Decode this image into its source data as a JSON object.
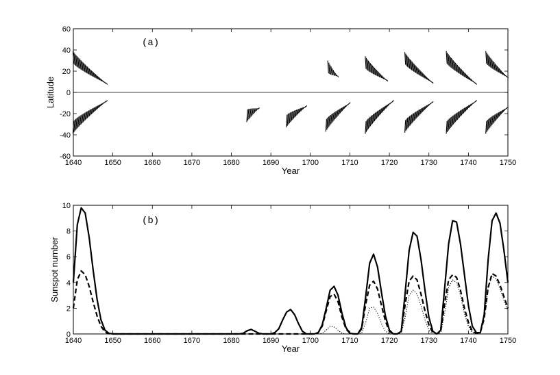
{
  "chart_data": [
    {
      "type": "scatter",
      "panel_label": "(a)",
      "xlabel": "Year",
      "ylabel": "Latitude",
      "xlim": [
        1640,
        1750
      ],
      "ylim": [
        -60,
        60
      ],
      "xticks": [
        1640,
        1650,
        1660,
        1670,
        1680,
        1690,
        1700,
        1710,
        1720,
        1730,
        1740,
        1750
      ],
      "yticks": [
        -60,
        -40,
        -20,
        0,
        20,
        40,
        60
      ],
      "zero_line": true,
      "grid": false,
      "wings": [
        {
          "start": 1640.0,
          "end": 1648.5,
          "lat_start": 33,
          "lat_end": 8,
          "hemispheres": [
            "N",
            "S"
          ]
        },
        {
          "start": 1684.0,
          "end": 1687.0,
          "lat_start": 22,
          "lat_end": 15,
          "hemispheres": [
            "S"
          ]
        },
        {
          "start": 1694.0,
          "end": 1699.0,
          "lat_start": 27,
          "lat_end": 13,
          "hemispheres": [
            "S"
          ]
        },
        {
          "start": 1704.5,
          "end": 1707.0,
          "lat_start": 24,
          "lat_end": 15,
          "hemispheres": [
            "N"
          ]
        },
        {
          "start": 1704.0,
          "end": 1710.0,
          "lat_start": 31,
          "lat_end": 10,
          "hemispheres": [
            "S"
          ]
        },
        {
          "start": 1714.0,
          "end": 1719.5,
          "lat_start": 28,
          "lat_end": 11,
          "hemispheres": [
            "N"
          ]
        },
        {
          "start": 1714.0,
          "end": 1721.0,
          "lat_start": 33,
          "lat_end": 8,
          "hemispheres": [
            "S"
          ]
        },
        {
          "start": 1724.0,
          "end": 1731.0,
          "lat_start": 32,
          "lat_end": 9,
          "hemispheres": [
            "N",
            "S"
          ]
        },
        {
          "start": 1734.5,
          "end": 1742.0,
          "lat_start": 33,
          "lat_end": 8,
          "hemispheres": [
            "N",
            "S"
          ]
        },
        {
          "start": 1744.5,
          "end": 1750.0,
          "lat_start": 33,
          "lat_end": 14,
          "hemispheres": [
            "N",
            "S"
          ]
        }
      ]
    },
    {
      "type": "line",
      "panel_label": "(b)",
      "xlabel": "Year",
      "ylabel": "Sunspot number",
      "xlim": [
        1640,
        1750
      ],
      "ylim": [
        0,
        10
      ],
      "xticks": [
        1640,
        1650,
        1660,
        1670,
        1680,
        1690,
        1700,
        1710,
        1720,
        1730,
        1740,
        1750
      ],
      "yticks": [
        0,
        2,
        4,
        6,
        8,
        10
      ],
      "grid": false,
      "series": [
        {
          "style": "solid",
          "x": [
            1640,
            1641,
            1642,
            1643,
            1644,
            1645,
            1646,
            1647,
            1648,
            1649,
            1650,
            1651,
            1682,
            1683,
            1684,
            1685,
            1686,
            1687,
            1688,
            1690,
            1691,
            1692,
            1693,
            1694,
            1695,
            1696,
            1697,
            1698,
            1699,
            1700,
            1701,
            1702,
            1703,
            1704,
            1705,
            1706,
            1707,
            1708,
            1709,
            1710,
            1711,
            1712,
            1713,
            1714,
            1715,
            1716,
            1717,
            1718,
            1719,
            1720,
            1721,
            1722,
            1723,
            1724,
            1725,
            1726,
            1727,
            1728,
            1729,
            1730,
            1731,
            1732,
            1733,
            1734,
            1735,
            1736,
            1737,
            1738,
            1739,
            1740,
            1741,
            1742,
            1743,
            1744,
            1745,
            1746,
            1747,
            1748,
            1749,
            1750
          ],
          "y": [
            4.0,
            8.5,
            9.8,
            9.4,
            7.5,
            5.0,
            2.7,
            1.1,
            0.3,
            0.05,
            0,
            0,
            0,
            0.05,
            0.25,
            0.35,
            0.2,
            0.05,
            0,
            0,
            0.1,
            0.4,
            1.1,
            1.7,
            1.9,
            1.5,
            0.8,
            0.2,
            0,
            0,
            0,
            0.1,
            0.7,
            2.0,
            3.4,
            3.7,
            3.0,
            1.6,
            0.5,
            0.05,
            0,
            0,
            0.5,
            2.9,
            5.5,
            6.2,
            5.2,
            3.2,
            1.4,
            0.3,
            0,
            0,
            0.2,
            3.2,
            6.5,
            7.9,
            7.6,
            5.8,
            3.4,
            1.3,
            0.2,
            0,
            0.3,
            3.6,
            7.0,
            8.8,
            8.7,
            7.0,
            4.6,
            2.2,
            0.6,
            0.1,
            0.1,
            1.5,
            5.8,
            8.8,
            9.4,
            8.6,
            6.5,
            4.0
          ]
        },
        {
          "style": "dashed",
          "x": [
            1640,
            1641,
            1642,
            1643,
            1644,
            1645,
            1646,
            1647,
            1648,
            1649,
            1650,
            1651,
            1701,
            1702,
            1703,
            1704,
            1705,
            1706,
            1707,
            1708,
            1709,
            1710,
            1711,
            1712,
            1713,
            1714,
            1715,
            1716,
            1717,
            1718,
            1719,
            1720,
            1721,
            1722,
            1723,
            1724,
            1725,
            1726,
            1727,
            1728,
            1729,
            1730,
            1731,
            1732,
            1733,
            1734,
            1735,
            1736,
            1737,
            1738,
            1739,
            1740,
            1741,
            1742,
            1743,
            1744,
            1745,
            1746,
            1747,
            1748,
            1749,
            1750
          ],
          "y": [
            2.0,
            4.2,
            4.9,
            4.6,
            3.7,
            2.5,
            1.4,
            0.6,
            0.15,
            0.02,
            0,
            0,
            0,
            0.1,
            0.6,
            1.8,
            2.9,
            3.1,
            2.5,
            1.3,
            0.4,
            0.05,
            0,
            0,
            0.4,
            2.3,
            3.8,
            4.1,
            3.5,
            2.2,
            1.0,
            0.2,
            0,
            0,
            0.2,
            2.3,
            4.1,
            4.5,
            4.2,
            3.1,
            1.8,
            0.7,
            0.1,
            0,
            0.2,
            2.4,
            4.2,
            4.6,
            4.4,
            3.4,
            2.0,
            0.9,
            0.2,
            0.05,
            0.1,
            1.2,
            3.6,
            4.7,
            4.5,
            3.8,
            2.9,
            2.0
          ]
        },
        {
          "style": "dotted",
          "x": [
            1702,
            1703,
            1704,
            1705,
            1706,
            1707,
            1708,
            1709,
            1712,
            1713,
            1714,
            1715,
            1716,
            1717,
            1718,
            1719,
            1720,
            1721,
            1722,
            1723,
            1724,
            1725,
            1726,
            1727,
            1728,
            1729,
            1730,
            1731,
            1732,
            1733,
            1734,
            1735,
            1736,
            1737,
            1738,
            1739,
            1740,
            1741,
            1742,
            1743,
            1744,
            1745,
            1746,
            1747,
            1748,
            1749,
            1750
          ],
          "y": [
            0,
            0.05,
            0.3,
            0.6,
            0.55,
            0.3,
            0.05,
            0,
            0,
            0.05,
            0.9,
            2.0,
            2.1,
            1.6,
            0.8,
            0.2,
            0,
            0,
            0,
            0.1,
            1.3,
            3.0,
            3.4,
            3.1,
            2.2,
            1.1,
            0.3,
            0,
            0,
            0.1,
            1.6,
            3.6,
            4.2,
            4.0,
            3.0,
            1.6,
            0.6,
            0.1,
            0,
            0.1,
            1.3,
            3.6,
            4.5,
            4.3,
            3.5,
            2.6,
            1.8
          ]
        }
      ]
    }
  ]
}
